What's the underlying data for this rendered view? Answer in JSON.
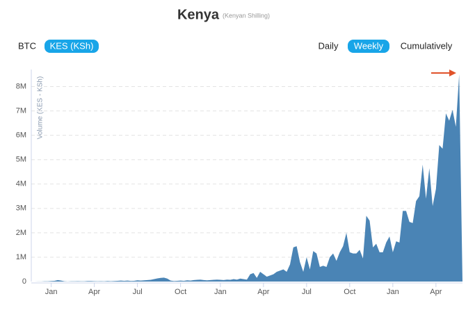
{
  "controls": {
    "currency": [
      "BTC",
      "KES (KSh)"
    ],
    "currency_active": 1,
    "period": [
      "Daily",
      "Weekly",
      "Cumulatively"
    ],
    "period_active": 1
  },
  "chart_data": {
    "type": "area",
    "title": "Kenya",
    "subtitle": "(Kenyan Shilling)",
    "y_label": "Volume (KES - KSh)",
    "color": "#4a84b5",
    "grid": true,
    "x": [
      0,
      1,
      2,
      3,
      4,
      5,
      6,
      7,
      8,
      9,
      10,
      11,
      12,
      13,
      14,
      15,
      16,
      17,
      18,
      19,
      20,
      21,
      22,
      23,
      24,
      25,
      26,
      27,
      28,
      29,
      30,
      31,
      32,
      33,
      34,
      35,
      36,
      37,
      38,
      39,
      40,
      41,
      42,
      43,
      44,
      45,
      46,
      47,
      48,
      49,
      50,
      51,
      52,
      53,
      54,
      55,
      56,
      57,
      58,
      59,
      60,
      61,
      62,
      63,
      64,
      65,
      66,
      67,
      68,
      69,
      70,
      71,
      72,
      73,
      74,
      75,
      76,
      77,
      78,
      79,
      80,
      81,
      82,
      83,
      84,
      85,
      86,
      87,
      88,
      89,
      90,
      91,
      92,
      93,
      94,
      95,
      96,
      97,
      98,
      99,
      100,
      101,
      102,
      103,
      104,
      105,
      106,
      107,
      108,
      109,
      110,
      111,
      112,
      113,
      114,
      115,
      116,
      117,
      118,
      119,
      120,
      121,
      122,
      123,
      124,
      125,
      126,
      127,
      128,
      129,
      130
    ],
    "values": [
      0,
      0,
      5000,
      5000,
      10000,
      10000,
      20000,
      30000,
      60000,
      40000,
      10000,
      5000,
      10000,
      10000,
      15000,
      10000,
      10000,
      20000,
      20000,
      15000,
      10000,
      15000,
      10000,
      20000,
      15000,
      20000,
      30000,
      40000,
      30000,
      40000,
      25000,
      30000,
      50000,
      40000,
      50000,
      60000,
      70000,
      100000,
      130000,
      150000,
      160000,
      120000,
      40000,
      20000,
      30000,
      40000,
      30000,
      50000,
      40000,
      60000,
      70000,
      80000,
      60000,
      50000,
      60000,
      70000,
      80000,
      70000,
      60000,
      80000,
      70000,
      100000,
      80000,
      120000,
      100000,
      80000,
      300000,
      350000,
      150000,
      400000,
      300000,
      200000,
      250000,
      300000,
      400000,
      450000,
      500000,
      400000,
      700000,
      1400000,
      1450000,
      800000,
      400000,
      1000000,
      500000,
      1250000,
      1150000,
      600000,
      650000,
      600000,
      1000000,
      1150000,
      850000,
      1200000,
      1450000,
      2000000,
      1200000,
      1150000,
      1150000,
      1300000,
      950000,
      2700000,
      2500000,
      1400000,
      1550000,
      1200000,
      1200000,
      1600000,
      1850000,
      1200000,
      1650000,
      1600000,
      2900000,
      2900000,
      2450000,
      2400000,
      3300000,
      3500000,
      4800000,
      3400000,
      4650000,
      3100000,
      3800000,
      5600000,
      5450000,
      6900000,
      6600000,
      7050000,
      6350000,
      8500000,
      0
    ],
    "xlim": [
      0,
      130
    ],
    "xticks": [
      {
        "value": 6,
        "label": "Jan"
      },
      {
        "value": 19,
        "label": "Apr"
      },
      {
        "value": 32,
        "label": "Jul"
      },
      {
        "value": 45,
        "label": "Oct"
      },
      {
        "value": 57,
        "label": "Jan"
      },
      {
        "value": 70,
        "label": "Apr"
      },
      {
        "value": 83,
        "label": "Jul"
      },
      {
        "value": 96,
        "label": "Oct"
      },
      {
        "value": 109,
        "label": "Jan"
      },
      {
        "value": 122,
        "label": "Apr"
      }
    ],
    "ylim": [
      0,
      8700000
    ],
    "yticks": [
      0,
      {
        "value": 1000000,
        "label": "1M"
      },
      {
        "value": 2000000,
        "label": "2M"
      },
      {
        "value": 3000000,
        "label": "3M"
      },
      {
        "value": 4000000,
        "label": "4M"
      },
      {
        "value": 5000000,
        "label": "5M"
      },
      {
        "value": 6000000,
        "label": "6M"
      },
      {
        "value": 7000000,
        "label": "7M"
      },
      {
        "value": 8000000,
        "label": "8M"
      }
    ]
  }
}
